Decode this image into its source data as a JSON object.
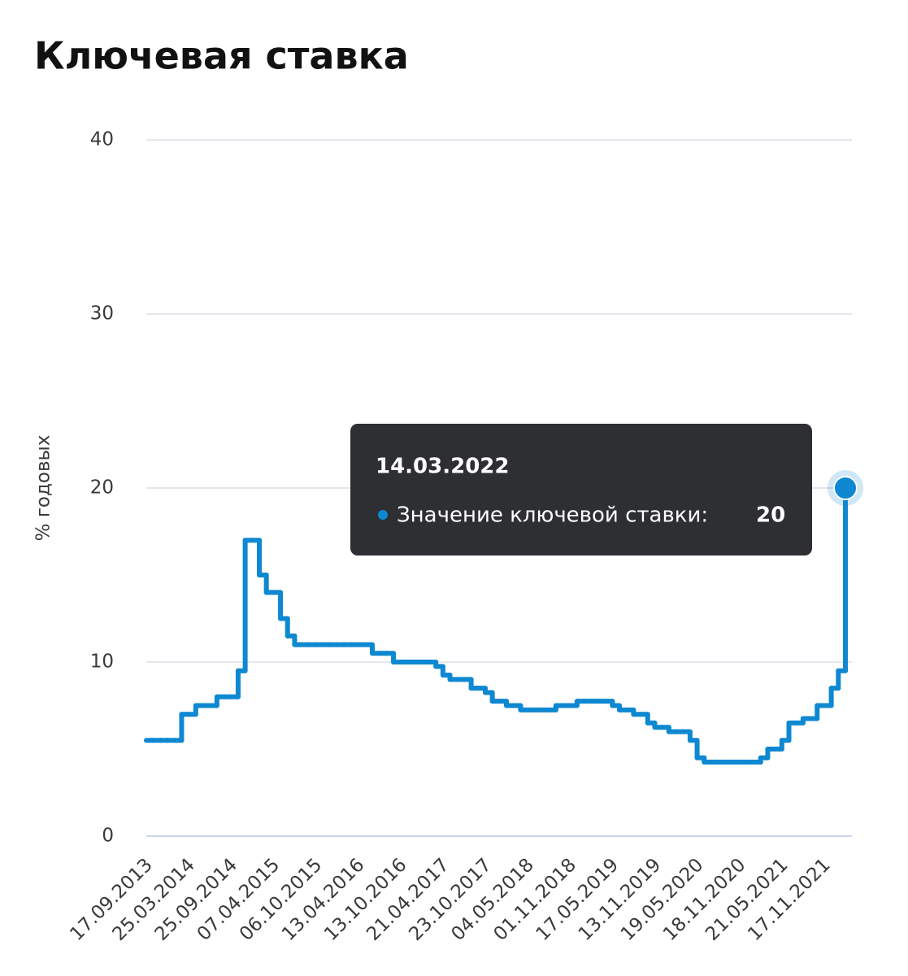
{
  "chart_data": {
    "type": "step-line",
    "title": "Ключевая ставка",
    "y_label": "% годовых",
    "categories": [
      "17.09.2013",
      null,
      null,
      null,
      null,
      null,
      "25.03.2014",
      null,
      null,
      null,
      null,
      null,
      "25.09.2014",
      null,
      null,
      null,
      null,
      null,
      "07.04.2015",
      null,
      null,
      null,
      null,
      null,
      "06.10.2015",
      null,
      null,
      null,
      null,
      null,
      "13.04.2016",
      null,
      null,
      null,
      null,
      null,
      "13.10.2016",
      null,
      null,
      null,
      null,
      null,
      "21.04.2017",
      null,
      null,
      null,
      null,
      null,
      "23.10.2017",
      null,
      null,
      null,
      null,
      null,
      "04.05.2018",
      null,
      null,
      null,
      null,
      null,
      "01.11.2018",
      null,
      null,
      null,
      null,
      null,
      "17.05.2019",
      null,
      null,
      null,
      null,
      null,
      "13.11.2019",
      null,
      null,
      null,
      null,
      null,
      "19.05.2020",
      null,
      null,
      null,
      null,
      null,
      "18.11.2020",
      null,
      null,
      null,
      null,
      null,
      "21.05.2021",
      null,
      null,
      null,
      null,
      null,
      "17.11.2021",
      null,
      null,
      null
    ],
    "series": [
      {
        "color": "#0f88d2",
        "values": [
          5.5,
          5.5,
          5.5,
          5.5,
          5.5,
          7,
          7,
          7.5,
          7.5,
          7.5,
          8,
          8,
          8,
          9.5,
          17,
          17,
          15,
          14,
          14,
          12.5,
          11.5,
          11,
          11,
          11,
          11,
          11,
          11,
          11,
          11,
          11,
          11,
          11,
          10.5,
          10.5,
          10.5,
          10,
          10,
          10,
          10,
          10,
          10,
          9.75,
          9.25,
          9,
          9,
          9,
          8.5,
          8.5,
          8.25,
          7.75,
          7.75,
          7.5,
          7.5,
          7.25,
          7.25,
          7.25,
          7.25,
          7.25,
          7.5,
          7.5,
          7.5,
          7.75,
          7.75,
          7.75,
          7.75,
          7.75,
          7.5,
          7.25,
          7.25,
          7,
          7,
          6.5,
          6.25,
          6.25,
          6,
          6,
          6,
          5.5,
          4.5,
          4.25,
          4.25,
          4.25,
          4.25,
          4.25,
          4.25,
          4.25,
          4.25,
          4.5,
          5,
          5,
          5.5,
          6.5,
          6.5,
          6.75,
          6.75,
          7.5,
          7.5,
          8.5,
          9.5,
          20
        ]
      }
    ],
    "ylim": [
      0,
      40
    ],
    "yticks": [
      0,
      10,
      20,
      30,
      40
    ],
    "grid": true,
    "tooltip": {
      "title": "14.03.2022",
      "label": "Значение ключевой ставки:"
    }
  }
}
